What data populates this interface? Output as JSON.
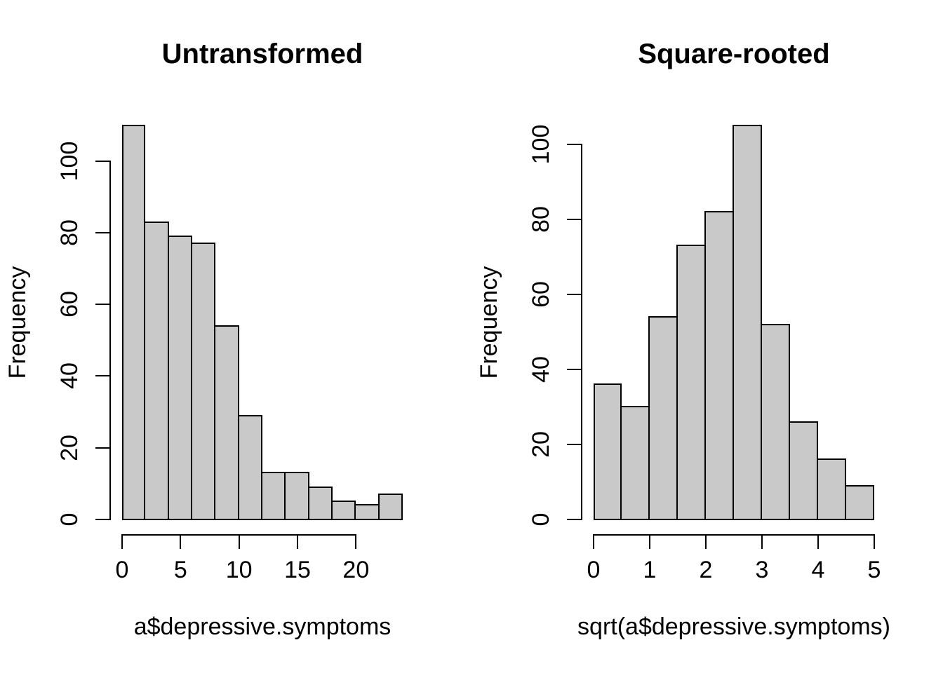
{
  "figure": {
    "background": "#FFFFFF",
    "bar_fill": "#C9C9C9",
    "bar_border": "#000000",
    "axis_color": "#000000",
    "text_color": "#000000"
  },
  "chart_data": [
    {
      "type": "bar",
      "subtype": "histogram",
      "title": "Untransformed",
      "xlabel": "a$depressive.symptoms",
      "ylabel": "Frequency",
      "bin_start": 0,
      "bin_width": 2,
      "bin_edges": [
        0,
        2,
        4,
        6,
        8,
        10,
        12,
        14,
        16,
        18,
        20,
        22,
        24
      ],
      "counts": [
        110,
        83,
        79,
        77,
        54,
        29,
        13,
        13,
        9,
        5,
        4,
        7
      ],
      "x_ticks": [
        0,
        5,
        10,
        15,
        20
      ],
      "y_ticks": [
        0,
        20,
        40,
        60,
        80,
        100
      ],
      "xlim": [
        0,
        24
      ],
      "ylim": [
        0,
        110
      ],
      "grid": false,
      "legend": null
    },
    {
      "type": "bar",
      "subtype": "histogram",
      "title": "Square-rooted",
      "xlabel": "sqrt(a$depressive.symptoms)",
      "ylabel": "Frequency",
      "bin_start": 0,
      "bin_width": 0.5,
      "bin_edges": [
        0,
        0.5,
        1,
        1.5,
        2,
        2.5,
        3,
        3.5,
        4,
        4.5,
        5
      ],
      "counts": [
        36,
        30,
        54,
        73,
        82,
        105,
        52,
        26,
        16,
        9
      ],
      "x_ticks": [
        0,
        1,
        2,
        3,
        4,
        5
      ],
      "y_ticks": [
        0,
        20,
        40,
        60,
        80,
        100
      ],
      "xlim": [
        0,
        5
      ],
      "ylim": [
        0,
        105
      ],
      "grid": false,
      "legend": null
    }
  ]
}
